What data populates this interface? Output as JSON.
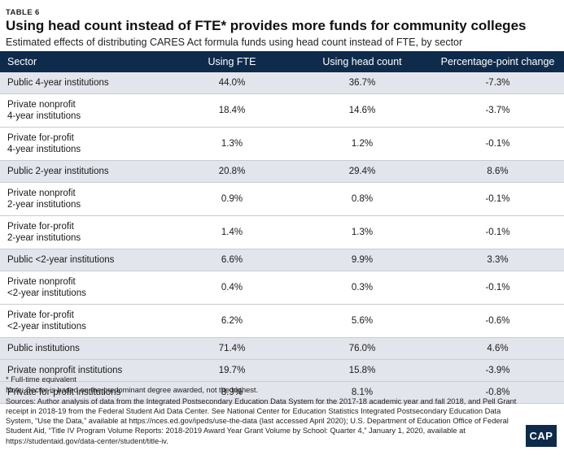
{
  "label": "TABLE 6",
  "title": "Using head count instead of FTE* provides more funds for community colleges",
  "subtitle": "Estimated effects of distributing CARES Act formula funds using head count instead of FTE, by sector",
  "table": {
    "headers": [
      "Sector",
      "Using FTE",
      "Using head count",
      "Percentage-point change"
    ],
    "rows": [
      {
        "sector": "Public 4-year institutions",
        "fte": "44.0%",
        "head": "36.7%",
        "change": "-7.3%",
        "lines": 1
      },
      {
        "sector": "Private nonprofit\n4-year institutions",
        "fte": "18.4%",
        "head": "14.6%",
        "change": "-3.7%",
        "lines": 2
      },
      {
        "sector": "Private for-profit\n4-year institutions",
        "fte": "1.3%",
        "head": "1.2%",
        "change": "-0.1%",
        "lines": 2
      },
      {
        "sector": "Public 2-year institutions",
        "fte": "20.8%",
        "head": "29.4%",
        "change": "8.6%",
        "lines": 1
      },
      {
        "sector": "Private nonprofit\n2-year institutions",
        "fte": "0.9%",
        "head": "0.8%",
        "change": "-0.1%",
        "lines": 2
      },
      {
        "sector": "Private for-profit\n2-year institutions",
        "fte": "1.4%",
        "head": "1.3%",
        "change": "-0.1%",
        "lines": 2
      },
      {
        "sector": "Public <2-year institutions",
        "fte": "6.6%",
        "head": "9.9%",
        "change": "3.3%",
        "lines": 1
      },
      {
        "sector": "Private nonprofit\n<2-year institutions",
        "fte": "0.4%",
        "head": "0.3%",
        "change": "-0.1%",
        "lines": 2
      },
      {
        "sector": "Private for-profit\n<2-year institutions",
        "fte": "6.2%",
        "head": "5.6%",
        "change": "-0.6%",
        "lines": 2
      },
      {
        "sector": "Public institutions",
        "fte": "71.4%",
        "head": "76.0%",
        "change": "4.6%",
        "lines": 1
      },
      {
        "sector": "Private nonprofit institutions",
        "fte": "19.7%",
        "head": "15.8%",
        "change": "-3.9%",
        "lines": 1
      },
      {
        "sector": "Private for-profit institutions",
        "fte": "8.9%",
        "head": "8.1%",
        "change": "-0.8%",
        "lines": 1
      }
    ]
  },
  "notes": {
    "footnote": "* Full-time equivalent",
    "note": "Note: Sector is based on the predominant degree awarded, not the highest.",
    "sources": "Sources: Author analysis of data from the Integrated Postsecondary Education Data System for the 2017-18 academic year and fall 2018, and Pell Grant receipt in 2018-19 from the Federal Student Aid Data Center. See National Center for Education Statistics Integrated Postsecondary Education Data System, “Use the Data,” available at https://nces.ed.gov/ipeds/use-the-data (last accessed April 2020); U.S. Department of Education Office of Federal Student Aid, “Title IV Program Volume Reports: 2018-2019 Award Year Grant Volume by School: Quarter 4,” January 1, 2020, available at https://studentaid.gov/data-center/student/title-iv."
  },
  "logo": "CAP",
  "colors": {
    "header_bg": "#0f2b4c",
    "shaded_row": "#e3e5ec",
    "header_text": "#ffffff"
  }
}
